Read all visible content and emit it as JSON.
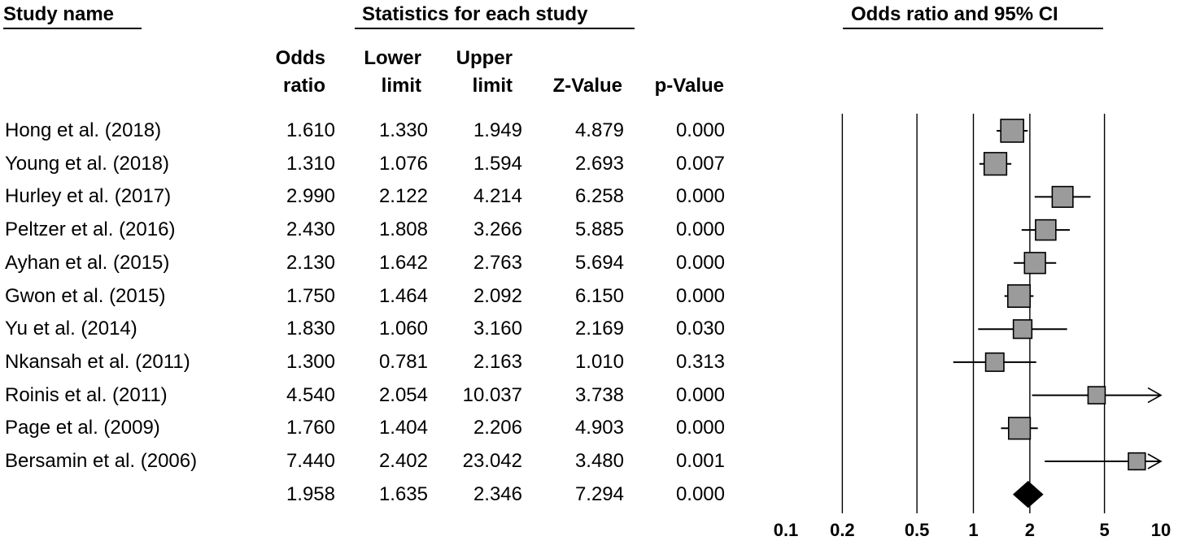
{
  "headers": {
    "study_name": "Study name",
    "statistics": "Statistics for each study",
    "plot": "Odds ratio and 95% CI"
  },
  "columns": {
    "or": [
      "Odds",
      "ratio"
    ],
    "lower": [
      "Lower",
      "limit"
    ],
    "upper": [
      "Upper",
      "limit"
    ],
    "z": "Z-Value",
    "p": "p-Value"
  },
  "rows": [
    {
      "name": "Hong et al. (2018)",
      "or": "1.610",
      "lower": "1.330",
      "upper": "1.949",
      "z": "4.879",
      "p": "0.000"
    },
    {
      "name": "Young et al. (2018)",
      "or": "1.310",
      "lower": "1.076",
      "upper": "1.594",
      "z": "2.693",
      "p": "0.007"
    },
    {
      "name": "Hurley et al. (2017)",
      "or": "2.990",
      "lower": "2.122",
      "upper": "4.214",
      "z": "6.258",
      "p": "0.000"
    },
    {
      "name": "Peltzer et al. (2016)",
      "or": "2.430",
      "lower": "1.808",
      "upper": "3.266",
      "z": "5.885",
      "p": "0.000"
    },
    {
      "name": "Ayhan et al. (2015)",
      "or": "2.130",
      "lower": "1.642",
      "upper": "2.763",
      "z": "5.694",
      "p": "0.000"
    },
    {
      "name": "Gwon et al. (2015)",
      "or": "1.750",
      "lower": "1.464",
      "upper": "2.092",
      "z": "6.150",
      "p": "0.000"
    },
    {
      "name": "Yu et al. (2014)",
      "or": "1.830",
      "lower": "1.060",
      "upper": "3.160",
      "z": "2.169",
      "p": "0.030"
    },
    {
      "name": "Nkansah et al. (2011)",
      "or": "1.300",
      "lower": "0.781",
      "upper": "2.163",
      "z": "1.010",
      "p": "0.313"
    },
    {
      "name": "Roinis et al. (2011)",
      "or": "4.540",
      "lower": "2.054",
      "upper": "10.037",
      "z": "3.738",
      "p": "0.000"
    },
    {
      "name": "Page et al. (2009)",
      "or": "1.760",
      "lower": "1.404",
      "upper": "2.206",
      "z": "4.903",
      "p": "0.000"
    },
    {
      "name": "Bersamin et al. (2006)",
      "or": "7.440",
      "lower": "2.402",
      "upper": "23.042",
      "z": "3.480",
      "p": "0.001"
    },
    {
      "name": "",
      "or": "1.958",
      "lower": "1.635",
      "upper": "2.346",
      "z": "7.294",
      "p": "0.000"
    }
  ],
  "chart_data": {
    "type": "forest",
    "title": "Odds ratio and 95% CI",
    "xscale": "log",
    "xlim": [
      0.1,
      10
    ],
    "ticks": [
      0.1,
      0.2,
      0.5,
      1,
      2,
      5,
      10
    ],
    "tick_labels": [
      "0.1",
      "0.2",
      "0.5",
      "1",
      "2",
      "5",
      "10"
    ],
    "reference_lines": [
      0.2,
      0.5,
      1,
      2,
      5
    ],
    "studies": [
      {
        "name": "Hong et al. (2018)",
        "or": 1.61,
        "lower": 1.33,
        "upper": 1.949,
        "weight": 1.0
      },
      {
        "name": "Young et al. (2018)",
        "or": 1.31,
        "lower": 1.076,
        "upper": 1.594,
        "weight": 0.97
      },
      {
        "name": "Hurley et al. (2017)",
        "or": 2.99,
        "lower": 2.122,
        "upper": 4.214,
        "weight": 0.82
      },
      {
        "name": "Peltzer et al. (2016)",
        "or": 2.43,
        "lower": 1.808,
        "upper": 3.266,
        "weight": 0.78
      },
      {
        "name": "Ayhan et al. (2015)",
        "or": 2.13,
        "lower": 1.642,
        "upper": 2.763,
        "weight": 0.84
      },
      {
        "name": "Gwon et al. (2015)",
        "or": 1.75,
        "lower": 1.464,
        "upper": 2.092,
        "weight": 0.96
      },
      {
        "name": "Yu et al. (2014)",
        "or": 1.83,
        "lower": 1.06,
        "upper": 3.16,
        "weight": 0.62
      },
      {
        "name": "Nkansah et al. (2011)",
        "or": 1.3,
        "lower": 0.781,
        "upper": 2.163,
        "weight": 0.6
      },
      {
        "name": "Roinis et al. (2011)",
        "or": 4.54,
        "lower": 2.054,
        "upper": 10.037,
        "weight": 0.5
      },
      {
        "name": "Page et al. (2009)",
        "or": 1.76,
        "lower": 1.404,
        "upper": 2.206,
        "weight": 0.9
      },
      {
        "name": "Bersamin et al. (2006)",
        "or": 7.44,
        "lower": 2.402,
        "upper": 23.042,
        "weight": 0.48
      }
    ],
    "summary": {
      "or": 1.958,
      "lower": 1.635,
      "upper": 2.346
    },
    "colors": {
      "box_fill": "#9b9b9b",
      "line": "#000000"
    }
  }
}
